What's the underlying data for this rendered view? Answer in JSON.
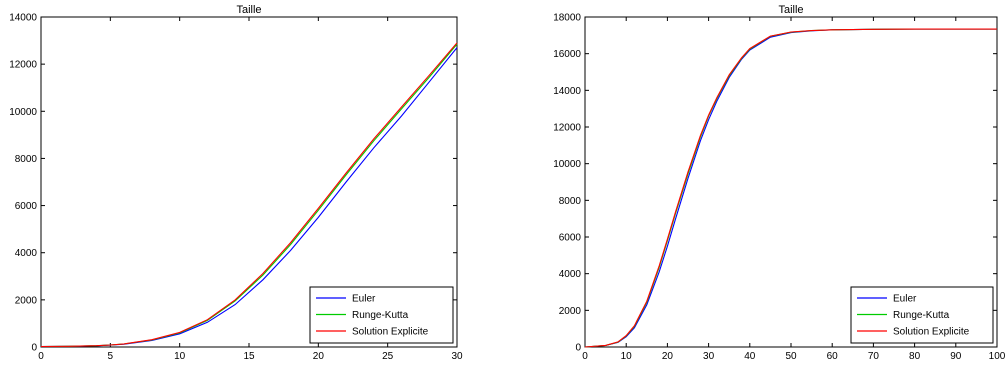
{
  "chart_data": [
    {
      "type": "line",
      "title": "Taille",
      "xlabel": "",
      "ylabel": "",
      "xlim": [
        0,
        30
      ],
      "ylim": [
        0,
        14000
      ],
      "xticks": [
        0,
        5,
        10,
        15,
        20,
        25,
        30
      ],
      "yticks": [
        0,
        2000,
        4000,
        6000,
        8000,
        10000,
        12000,
        14000
      ],
      "grid": false,
      "legend": "bottom-right",
      "series": [
        {
          "name": "Euler",
          "color": "#0000ff",
          "x": [
            0,
            2,
            4,
            5,
            6,
            8,
            10,
            12,
            14,
            16,
            18,
            20,
            22,
            24,
            26,
            28,
            30
          ],
          "y": [
            20,
            30,
            50,
            80,
            120,
            280,
            560,
            1050,
            1800,
            2850,
            4100,
            5500,
            7000,
            8450,
            9800,
            11250,
            12700
          ]
        },
        {
          "name": "Runge-Kutta",
          "color": "#00cc00",
          "x": [
            0,
            2,
            4,
            5,
            6,
            8,
            10,
            12,
            14,
            16,
            18,
            20,
            22,
            24,
            26,
            28,
            30
          ],
          "y": [
            20,
            30,
            55,
            85,
            130,
            300,
            600,
            1130,
            1950,
            3050,
            4350,
            5800,
            7300,
            8750,
            10100,
            11450,
            12850
          ]
        },
        {
          "name": "Solution Explicite",
          "color": "#ff0000",
          "x": [
            0,
            2,
            4,
            5,
            6,
            8,
            10,
            12,
            14,
            16,
            18,
            20,
            22,
            24,
            26,
            28,
            30
          ],
          "y": [
            20,
            30,
            55,
            85,
            130,
            310,
            620,
            1160,
            2000,
            3120,
            4430,
            5880,
            7380,
            8830,
            10180,
            11530,
            12900
          ]
        }
      ]
    },
    {
      "type": "line",
      "title": "Taille",
      "xlabel": "",
      "ylabel": "",
      "xlim": [
        0,
        100
      ],
      "ylim": [
        0,
        18000
      ],
      "xticks": [
        0,
        10,
        20,
        30,
        40,
        50,
        60,
        70,
        80,
        90,
        100
      ],
      "yticks": [
        0,
        2000,
        4000,
        6000,
        8000,
        10000,
        12000,
        14000,
        16000,
        18000
      ],
      "grid": false,
      "legend": "bottom-right",
      "series": [
        {
          "name": "Euler",
          "color": "#0000ff",
          "x": [
            0,
            5,
            8,
            10,
            12,
            15,
            18,
            20,
            22,
            25,
            28,
            30,
            32,
            35,
            38,
            40,
            45,
            50,
            55,
            60,
            70,
            80,
            90,
            100
          ],
          "y": [
            0,
            80,
            250,
            560,
            1050,
            2300,
            4100,
            5500,
            7000,
            9200,
            11250,
            12400,
            13400,
            14700,
            15700,
            16200,
            16900,
            17150,
            17250,
            17300,
            17330,
            17340,
            17340,
            17340
          ]
        },
        {
          "name": "Runge-Kutta",
          "color": "#00cc00",
          "x": [
            0,
            5,
            8,
            10,
            12,
            15,
            18,
            20,
            22,
            25,
            28,
            30,
            32,
            35,
            38,
            40,
            45,
            50,
            55,
            60,
            70,
            80,
            90,
            100
          ],
          "y": [
            0,
            85,
            270,
            600,
            1130,
            2450,
            4350,
            5800,
            7300,
            9450,
            11450,
            12600,
            13550,
            14800,
            15750,
            16250,
            16950,
            17170,
            17260,
            17300,
            17330,
            17340,
            17340,
            17340
          ]
        },
        {
          "name": "Solution Explicite",
          "color": "#ff0000",
          "x": [
            0,
            5,
            8,
            10,
            12,
            15,
            18,
            20,
            22,
            25,
            28,
            30,
            32,
            35,
            38,
            40,
            45,
            50,
            55,
            60,
            70,
            80,
            90,
            100
          ],
          "y": [
            0,
            85,
            280,
            620,
            1160,
            2500,
            4430,
            5880,
            7380,
            9550,
            11530,
            12650,
            13600,
            14850,
            15780,
            16280,
            16960,
            17180,
            17260,
            17300,
            17330,
            17340,
            17340,
            17340
          ]
        }
      ]
    }
  ]
}
